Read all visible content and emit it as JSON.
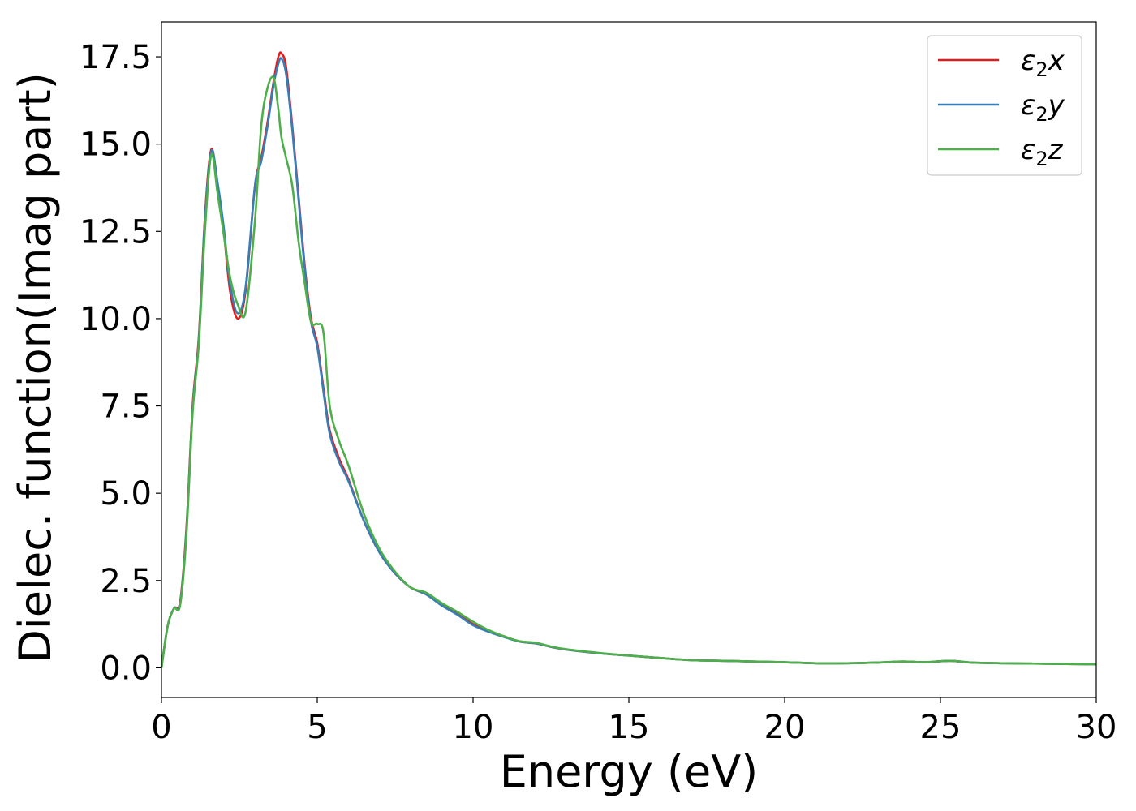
{
  "chart_data": {
    "type": "line",
    "title": "",
    "xlabel": "Energy (eV)",
    "ylabel": "Dielec. function(Imag part)",
    "xlim": [
      0,
      30
    ],
    "ylim": [
      -0.85,
      18.5
    ],
    "xticks": [
      0,
      5,
      10,
      15,
      20,
      25,
      30
    ],
    "xtick_labels": [
      "0",
      "5",
      "10",
      "15",
      "20",
      "25",
      "30"
    ],
    "yticks": [
      0,
      2.5,
      5,
      7.5,
      10,
      12.5,
      15,
      17.5
    ],
    "ytick_labels": [
      "0.0",
      "2.5",
      "5.0",
      "7.5",
      "10.0",
      "12.5",
      "15.0",
      "17.5"
    ],
    "grid": false,
    "legend_position": "top-right",
    "series": [
      {
        "name": "ε2x",
        "legend": {
          "base": "ε",
          "sub": "2",
          "suffix": "x"
        },
        "color": "#e41a1c",
        "x": [
          0,
          0.2,
          0.4,
          0.6,
          0.8,
          1.0,
          1.2,
          1.4,
          1.6,
          1.8,
          2.0,
          2.2,
          2.45,
          2.7,
          3.0,
          3.2,
          3.4,
          3.6,
          3.75,
          3.85,
          4.0,
          4.2,
          4.4,
          4.6,
          4.8,
          5.0,
          5.2,
          5.4,
          5.7,
          6.0,
          6.5,
          7.0,
          7.5,
          8.0,
          8.5,
          9.0,
          9.5,
          10.0,
          10.5,
          11.0,
          11.5,
          12.0,
          12.5,
          13.0,
          14.0,
          15.0,
          16.0,
          17.0,
          18.0,
          19.0,
          20.0,
          21.0,
          22.0,
          23.0,
          23.8,
          24.5,
          25.3,
          26.0,
          27.0,
          28.0,
          29.0,
          30.0
        ],
        "values": [
          0,
          1.2,
          1.7,
          1.9,
          4.0,
          7.5,
          9.5,
          13.0,
          14.85,
          13.8,
          12.5,
          10.8,
          10.0,
          10.8,
          13.8,
          14.6,
          15.6,
          16.8,
          17.5,
          17.6,
          17.2,
          15.5,
          13.5,
          11.5,
          10.0,
          9.3,
          8.0,
          6.8,
          6.0,
          5.4,
          4.2,
          3.3,
          2.7,
          2.3,
          2.1,
          1.8,
          1.55,
          1.25,
          1.05,
          0.9,
          0.75,
          0.7,
          0.6,
          0.52,
          0.42,
          0.35,
          0.28,
          0.22,
          0.2,
          0.18,
          0.16,
          0.13,
          0.13,
          0.15,
          0.18,
          0.16,
          0.2,
          0.15,
          0.13,
          0.12,
          0.11,
          0.1
        ]
      },
      {
        "name": "ε2y",
        "legend": {
          "base": "ε",
          "sub": "2",
          "suffix": "y"
        },
        "color": "#377eb8",
        "x": [
          0,
          0.2,
          0.4,
          0.6,
          0.8,
          1.0,
          1.2,
          1.4,
          1.6,
          1.8,
          2.0,
          2.2,
          2.45,
          2.7,
          3.0,
          3.2,
          3.4,
          3.6,
          3.75,
          3.85,
          4.0,
          4.2,
          4.4,
          4.6,
          4.8,
          5.0,
          5.2,
          5.4,
          5.7,
          6.0,
          6.5,
          7.0,
          7.5,
          8.0,
          8.5,
          9.0,
          9.5,
          10.0,
          10.5,
          11.0,
          11.5,
          12.0,
          12.5,
          13.0,
          14.0,
          15.0,
          16.0,
          17.0,
          18.0,
          19.0,
          20.0,
          21.0,
          22.0,
          23.0,
          23.8,
          24.5,
          25.3,
          26.0,
          27.0,
          28.0,
          29.0,
          30.0
        ],
        "values": [
          0,
          1.2,
          1.7,
          1.85,
          3.9,
          7.4,
          9.4,
          12.9,
          14.8,
          13.9,
          12.6,
          11.0,
          10.15,
          10.9,
          13.8,
          14.5,
          15.5,
          16.7,
          17.3,
          17.45,
          17.0,
          15.4,
          13.4,
          11.4,
          9.9,
          9.2,
          7.9,
          6.7,
          5.9,
          5.35,
          4.2,
          3.3,
          2.7,
          2.3,
          2.1,
          1.78,
          1.52,
          1.22,
          1.03,
          0.88,
          0.75,
          0.7,
          0.6,
          0.52,
          0.42,
          0.35,
          0.28,
          0.22,
          0.2,
          0.18,
          0.16,
          0.13,
          0.13,
          0.15,
          0.18,
          0.16,
          0.2,
          0.15,
          0.13,
          0.12,
          0.11,
          0.1
        ]
      },
      {
        "name": "ε2z",
        "legend": {
          "base": "ε",
          "sub": "2",
          "suffix": "z"
        },
        "color": "#4daf4a",
        "x": [
          0,
          0.2,
          0.4,
          0.6,
          0.8,
          1.0,
          1.2,
          1.4,
          1.6,
          1.8,
          2.0,
          2.2,
          2.45,
          2.7,
          3.0,
          3.2,
          3.4,
          3.6,
          3.75,
          3.85,
          4.0,
          4.2,
          4.4,
          4.6,
          4.8,
          5.0,
          5.2,
          5.4,
          5.7,
          6.0,
          6.5,
          7.0,
          7.5,
          8.0,
          8.5,
          9.0,
          9.5,
          10.0,
          10.5,
          11.0,
          11.5,
          12.0,
          12.5,
          13.0,
          14.0,
          15.0,
          16.0,
          17.0,
          18.0,
          19.0,
          20.0,
          21.0,
          22.0,
          23.0,
          23.8,
          24.5,
          25.3,
          26.0,
          27.0,
          28.0,
          29.0,
          30.0
        ],
        "values": [
          0,
          1.2,
          1.7,
          1.8,
          3.8,
          7.3,
          9.3,
          12.6,
          14.7,
          13.6,
          12.4,
          11.2,
          10.4,
          10.2,
          12.8,
          15.5,
          16.6,
          16.9,
          16.0,
          15.2,
          14.6,
          13.8,
          12.2,
          11.0,
          9.9,
          9.85,
          9.6,
          7.5,
          6.5,
          5.8,
          4.4,
          3.4,
          2.75,
          2.3,
          2.15,
          1.85,
          1.6,
          1.32,
          1.08,
          0.9,
          0.76,
          0.72,
          0.61,
          0.53,
          0.43,
          0.35,
          0.28,
          0.22,
          0.2,
          0.18,
          0.16,
          0.13,
          0.13,
          0.15,
          0.18,
          0.16,
          0.2,
          0.15,
          0.13,
          0.12,
          0.11,
          0.1
        ]
      }
    ]
  }
}
